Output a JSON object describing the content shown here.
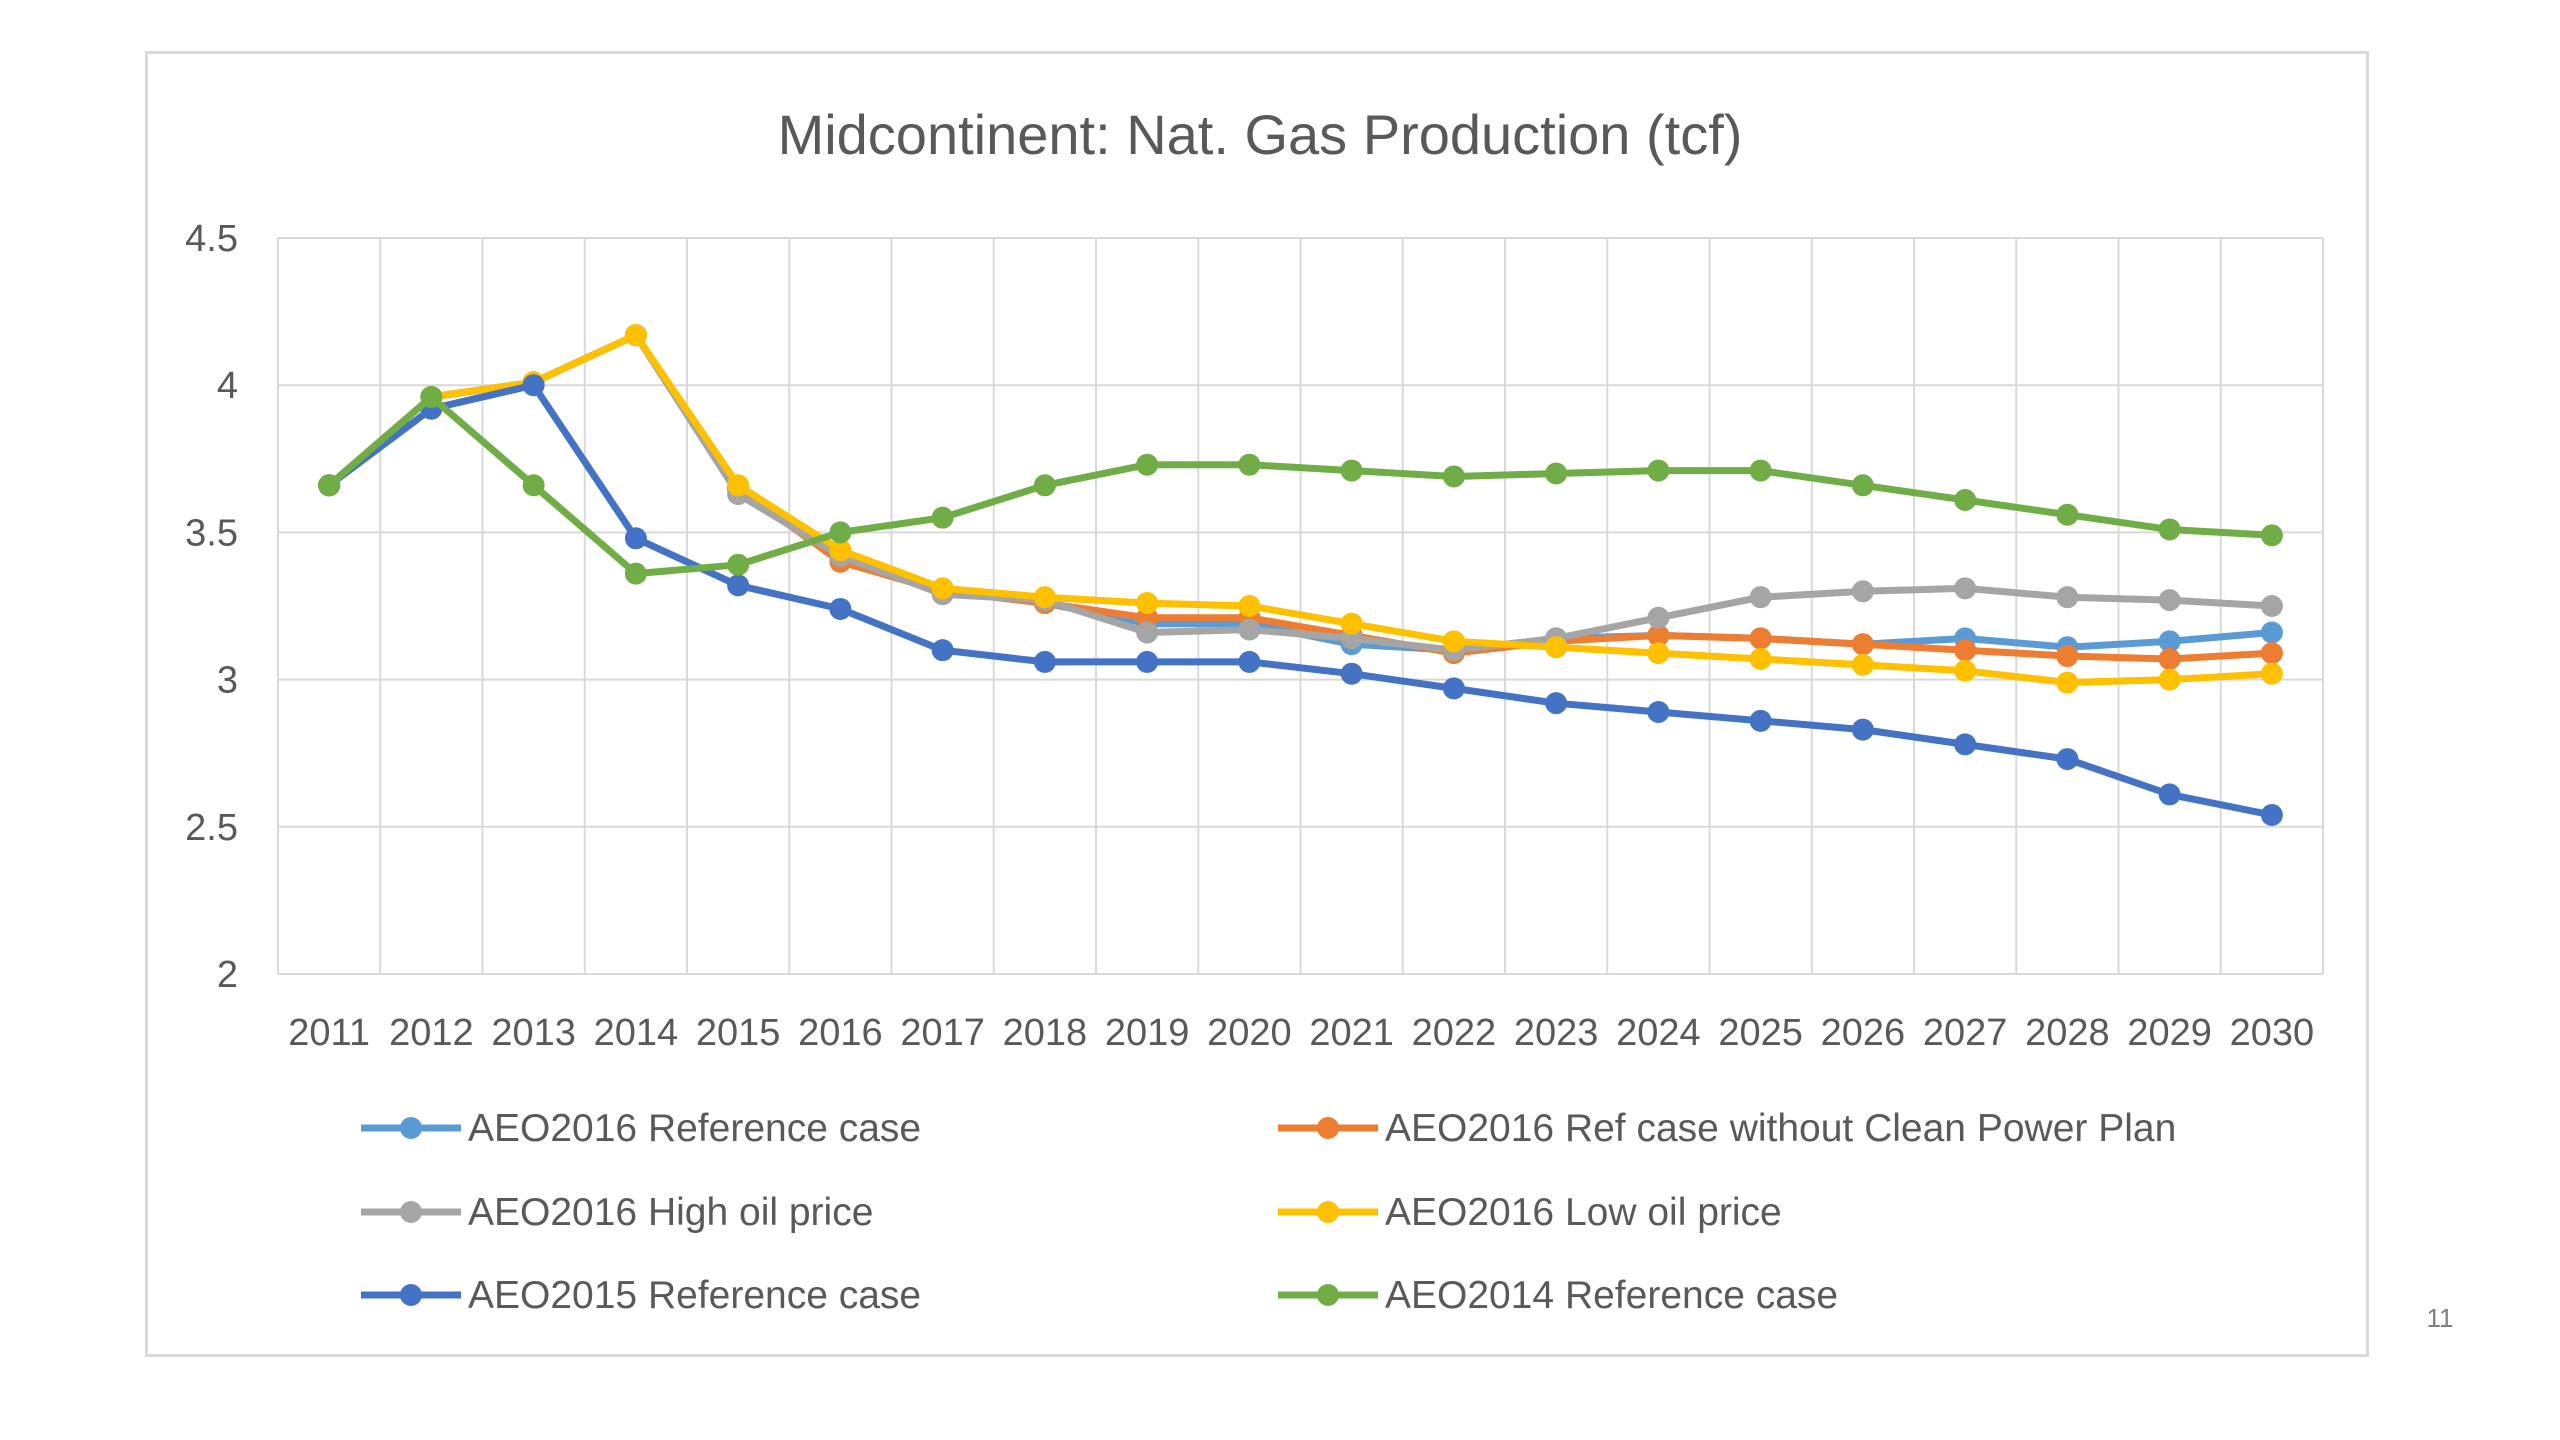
{
  "slide": {
    "number": "11"
  },
  "chart_data": {
    "type": "line",
    "title": "Midcontinent: Nat. Gas Production (tcf)",
    "xlabel": "",
    "ylabel": "",
    "ylim": [
      2,
      4.5
    ],
    "y_ticks": [
      "2",
      "2.5",
      "3",
      "3.5",
      "4",
      "4.5"
    ],
    "y_tick_values": [
      2,
      2.5,
      3,
      3.5,
      4,
      4.5
    ],
    "categories": [
      "2011",
      "2012",
      "2013",
      "2014",
      "2015",
      "2016",
      "2017",
      "2018",
      "2019",
      "2020",
      "2021",
      "2022",
      "2023",
      "2024",
      "2025",
      "2026",
      "2027",
      "2028",
      "2029",
      "2030"
    ],
    "grid": true,
    "legend_position": "bottom",
    "series": [
      {
        "name": "AEO2016 Reference case",
        "color": "#5b9bd5",
        "values": [
          3.66,
          3.96,
          4.01,
          4.17,
          3.65,
          3.42,
          3.3,
          3.26,
          3.19,
          3.19,
          3.12,
          3.1,
          3.14,
          3.15,
          3.14,
          3.12,
          3.14,
          3.11,
          3.13,
          3.16
        ]
      },
      {
        "name": "AEO2016 Ref case without Clean Power Plan",
        "color": "#ed7d31",
        "values": [
          3.66,
          3.96,
          4.01,
          4.17,
          3.65,
          3.4,
          3.3,
          3.26,
          3.21,
          3.21,
          3.15,
          3.09,
          3.13,
          3.15,
          3.14,
          3.12,
          3.1,
          3.08,
          3.07,
          3.09
        ]
      },
      {
        "name": "AEO2016 High oil price",
        "color": "#a5a5a5",
        "values": [
          3.66,
          3.96,
          4.01,
          4.17,
          3.63,
          3.42,
          3.29,
          3.27,
          3.16,
          3.17,
          3.14,
          3.1,
          3.14,
          3.21,
          3.28,
          3.3,
          3.31,
          3.28,
          3.27,
          3.25
        ]
      },
      {
        "name": "AEO2016 Low oil price",
        "color": "#ffc000",
        "values": [
          3.66,
          3.96,
          4.01,
          4.17,
          3.66,
          3.44,
          3.31,
          3.28,
          3.26,
          3.25,
          3.19,
          3.13,
          3.11,
          3.09,
          3.07,
          3.05,
          3.03,
          2.99,
          3.0,
          3.02
        ]
      },
      {
        "name": "AEO2015 Reference case",
        "color": "#4472c4",
        "values": [
          3.66,
          3.92,
          4.0,
          3.48,
          3.32,
          3.24,
          3.1,
          3.06,
          3.06,
          3.06,
          3.02,
          2.97,
          2.92,
          2.89,
          2.86,
          2.83,
          2.78,
          2.73,
          2.61,
          2.54
        ]
      },
      {
        "name": "AEO2014 Reference case",
        "color": "#70ad47",
        "values": [
          3.66,
          3.96,
          3.66,
          3.36,
          3.39,
          3.5,
          3.55,
          3.66,
          3.73,
          3.73,
          3.71,
          3.69,
          3.7,
          3.71,
          3.71,
          3.66,
          3.61,
          3.56,
          3.51,
          3.49
        ]
      }
    ]
  }
}
